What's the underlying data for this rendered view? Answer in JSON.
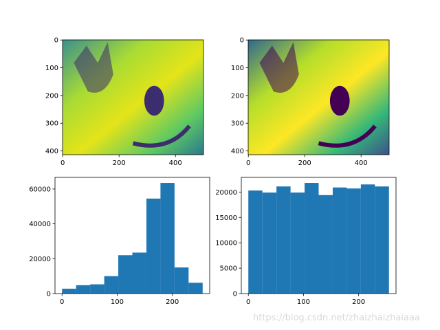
{
  "chart_data": [
    {
      "type": "image",
      "xlim": [
        -0.5,
        499.5
      ],
      "ylim": [
        413.5,
        -0.5
      ],
      "xticks": [
        0,
        200,
        400
      ],
      "yticks": [
        0,
        100,
        200,
        300,
        400
      ],
      "colormap": "viridis"
    },
    {
      "type": "image",
      "xlim": [
        -0.5,
        499.5
      ],
      "ylim": [
        413.5,
        -0.5
      ],
      "xticks": [
        0,
        200,
        400
      ],
      "yticks": [
        0,
        100,
        200,
        300,
        400
      ],
      "colormap": "viridis"
    },
    {
      "type": "histogram",
      "color": "#1f77b4",
      "bins": [
        0,
        25.5,
        51,
        76.5,
        102,
        127.5,
        153,
        178.5,
        204,
        229.5,
        255
      ],
      "values": [
        2800,
        4800,
        5300,
        10000,
        22000,
        23500,
        54500,
        63500,
        15000,
        6200
      ],
      "xlim": [
        -12.75,
        267.75
      ],
      "ylim": [
        0,
        66675
      ],
      "xticks": [
        0,
        100,
        200
      ],
      "yticks": [
        0,
        20000,
        40000,
        60000
      ]
    },
    {
      "type": "histogram",
      "color": "#1f77b4",
      "bins": [
        0,
        25.5,
        51,
        76.5,
        102,
        127.5,
        153,
        178.5,
        204,
        229.5,
        255
      ],
      "values": [
        20300,
        19900,
        21100,
        19900,
        21800,
        19400,
        20900,
        20700,
        21500,
        21100
      ],
      "xlim": [
        -12.75,
        267.75
      ],
      "ylim": [
        0,
        22890
      ],
      "xticks": [
        0,
        100,
        200
      ],
      "yticks": [
        0,
        5000,
        10000,
        15000,
        20000
      ]
    }
  ],
  "watermark": "https://blog.csdn.net/zhaizhaizhaiaaa"
}
